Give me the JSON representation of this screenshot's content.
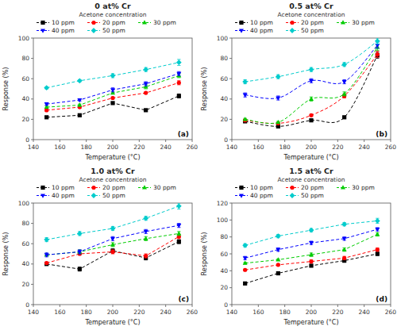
{
  "chart_data": [
    {
      "type": "line",
      "title": "0 at% Cr",
      "annotations": [
        "(a)"
      ],
      "legend_title": "Acetone concentration",
      "xlabel": "Temperature (°C)",
      "ylabel": "Response (%)",
      "x": [
        150,
        175,
        200,
        225,
        250
      ],
      "xlim": [
        140,
        260
      ],
      "xticks": [
        140,
        160,
        180,
        200,
        220,
        240,
        260
      ],
      "ylim": [
        0,
        100
      ],
      "yticks": [
        0,
        20,
        40,
        60,
        80,
        100
      ],
      "grid": false,
      "legend": "top",
      "line_style": "dashed",
      "series": [
        {
          "name": "10 ppm",
          "color": "#000000",
          "marker": "square",
          "values": [
            22,
            24,
            36,
            29,
            43
          ],
          "error": [
            1,
            1,
            1,
            1,
            2
          ]
        },
        {
          "name": "20 ppm",
          "color": "#ff0000",
          "marker": "circle",
          "values": [
            29,
            32,
            41,
            46,
            56
          ],
          "error": [
            1,
            1,
            1,
            1,
            2
          ]
        },
        {
          "name": "30 ppm",
          "color": "#00cc00",
          "marker": "triangle-up",
          "values": [
            32,
            34,
            46,
            52,
            63
          ],
          "error": [
            1,
            1,
            1,
            2,
            2
          ]
        },
        {
          "name": "40 ppm",
          "color": "#0000ff",
          "marker": "triangle-down",
          "values": [
            35,
            39,
            49,
            55,
            65
          ],
          "error": [
            1,
            1,
            2,
            2,
            2
          ]
        },
        {
          "name": "50 ppm",
          "color": "#00cccc",
          "marker": "diamond",
          "values": [
            51,
            58,
            63,
            69,
            76
          ],
          "error": [
            1,
            1,
            2,
            2,
            3
          ]
        }
      ]
    },
    {
      "type": "line",
      "title": "0.5 at% Cr",
      "annotations": [
        "(b)"
      ],
      "legend_title": "Acetone concentration",
      "xlabel": "Temperature (°C)",
      "ylabel": "Response (%)",
      "x": [
        150,
        175,
        200,
        225,
        250
      ],
      "xlim": [
        140,
        260
      ],
      "xticks": [
        140,
        160,
        180,
        200,
        220,
        240,
        260
      ],
      "ylim": [
        0,
        100
      ],
      "yticks": [
        0,
        20,
        40,
        60,
        80,
        100
      ],
      "grid": false,
      "legend": "top",
      "line_style": "smooth-dashed",
      "series": [
        {
          "name": "10 ppm",
          "color": "#000000",
          "marker": "square",
          "values": [
            18,
            13,
            19,
            22,
            83
          ],
          "error": [
            1,
            1,
            1,
            1,
            3
          ]
        },
        {
          "name": "20 ppm",
          "color": "#ff0000",
          "marker": "circle",
          "values": [
            19,
            16,
            24,
            43,
            84
          ],
          "error": [
            1,
            1,
            1,
            2,
            3
          ]
        },
        {
          "name": "30 ppm",
          "color": "#00cc00",
          "marker": "triangle-up",
          "values": [
            20,
            17,
            40,
            45,
            91
          ],
          "error": [
            1,
            1,
            2,
            2,
            3
          ]
        },
        {
          "name": "40 ppm",
          "color": "#0000ff",
          "marker": "triangle-down",
          "values": [
            44,
            41,
            58,
            57,
            93
          ],
          "error": [
            2,
            2,
            2,
            2,
            3
          ]
        },
        {
          "name": "50 ppm",
          "color": "#00cccc",
          "marker": "diamond",
          "values": [
            57,
            62,
            69,
            74,
            97
          ],
          "error": [
            2,
            2,
            2,
            2,
            3
          ]
        }
      ]
    },
    {
      "type": "line",
      "title": "1.0 at% Cr",
      "annotations": [
        "(c)"
      ],
      "legend_title": "Acetone concentration",
      "xlabel": "Temperature (°C)",
      "ylabel": "Response (%)",
      "x": [
        150,
        175,
        200,
        225,
        250
      ],
      "xlim": [
        140,
        260
      ],
      "xticks": [
        140,
        160,
        180,
        200,
        220,
        240,
        260
      ],
      "ylim": [
        0,
        100
      ],
      "yticks": [
        0,
        20,
        40,
        60,
        80,
        100
      ],
      "grid": false,
      "legend": "top",
      "line_style": "dashed",
      "series": [
        {
          "name": "10 ppm",
          "color": "#000000",
          "marker": "square",
          "values": [
            40,
            35,
            53,
            46,
            62
          ],
          "error": [
            1,
            2,
            2,
            2,
            2
          ]
        },
        {
          "name": "20 ppm",
          "color": "#ff0000",
          "marker": "circle",
          "values": [
            41,
            50,
            52,
            48,
            67
          ],
          "error": [
            1,
            1,
            2,
            2,
            2
          ]
        },
        {
          "name": "30 ppm",
          "color": "#00cc00",
          "marker": "triangle-up",
          "values": [
            49,
            52,
            59,
            65,
            70
          ],
          "error": [
            1,
            2,
            2,
            2,
            2
          ]
        },
        {
          "name": "40 ppm",
          "color": "#0000ff",
          "marker": "triangle-down",
          "values": [
            49,
            52,
            65,
            72,
            78
          ],
          "error": [
            2,
            2,
            2,
            2,
            2
          ]
        },
        {
          "name": "50 ppm",
          "color": "#00cccc",
          "marker": "diamond",
          "values": [
            64,
            70,
            75,
            85,
            97
          ],
          "error": [
            2,
            2,
            2,
            2,
            3
          ]
        }
      ]
    },
    {
      "type": "line",
      "title": "1.5 at% Cr",
      "annotations": [
        "(d)"
      ],
      "legend_title": "Acetone concentration",
      "xlabel": "Temperature (°C)",
      "ylabel": "Response (%)",
      "x": [
        150,
        175,
        200,
        225,
        250
      ],
      "xlim": [
        140,
        260
      ],
      "xticks": [
        140,
        160,
        180,
        200,
        220,
        240,
        260
      ],
      "ylim": [
        0,
        120
      ],
      "yticks": [
        0,
        20,
        40,
        60,
        80,
        100,
        120
      ],
      "grid": false,
      "legend": "top",
      "line_style": "dashed",
      "series": [
        {
          "name": "10 ppm",
          "color": "#000000",
          "marker": "square",
          "values": [
            25,
            37,
            46,
            52,
            60
          ],
          "error": [
            1,
            1,
            1,
            2,
            2
          ]
        },
        {
          "name": "20 ppm",
          "color": "#ff0000",
          "marker": "circle",
          "values": [
            41,
            47,
            51,
            55,
            65
          ],
          "error": [
            1,
            1,
            2,
            2,
            2
          ]
        },
        {
          "name": "30 ppm",
          "color": "#00cc00",
          "marker": "triangle-up",
          "values": [
            49,
            53,
            59,
            65,
            83
          ],
          "error": [
            1,
            1,
            2,
            2,
            2
          ]
        },
        {
          "name": "40 ppm",
          "color": "#0000ff",
          "marker": "triangle-down",
          "values": [
            55,
            65,
            73,
            78,
            89
          ],
          "error": [
            2,
            2,
            2,
            2,
            2
          ]
        },
        {
          "name": "50 ppm",
          "color": "#00cccc",
          "marker": "diamond",
          "values": [
            70,
            81,
            88,
            95,
            99
          ],
          "error": [
            2,
            2,
            2,
            2,
            3
          ]
        }
      ]
    }
  ]
}
